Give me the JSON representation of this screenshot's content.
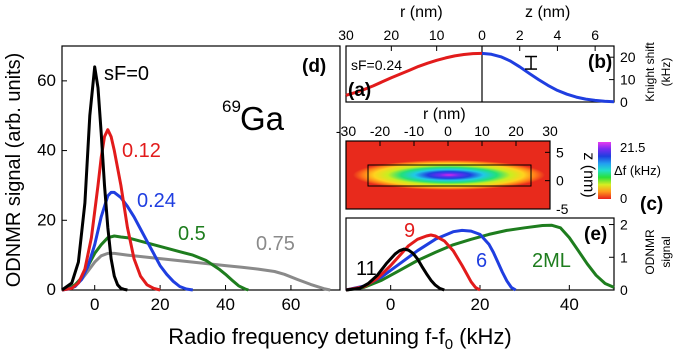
{
  "colors": {
    "black": "#000000",
    "red": "#e21b1b",
    "blue": "#1f3ee0",
    "green": "#1e7d1e",
    "gray": "#8a8a8a"
  },
  "shared": {
    "xlabel_main": "Radio frequency detuning f-f",
    "xlabel_sub": "0",
    "xlabel_unit": " (kHz)"
  },
  "chart_data": [
    {
      "id": "d",
      "type": "line",
      "panel_label": "(d)",
      "ylabel": "ODNMR signal (arb. units)",
      "xlim": [
        -10,
        75
      ],
      "ylim": [
        0,
        70
      ],
      "xticks": [
        0,
        20,
        40,
        60
      ],
      "yticks": [
        0,
        20,
        40,
        60
      ],
      "isotope_mass": "69",
      "isotope_symbol": "Ga",
      "series": [
        {
          "label": "sF=0",
          "color": "#000000",
          "x": [
            -10,
            -7,
            -5,
            -3,
            -1.5,
            0,
            1,
            2,
            3,
            4,
            5,
            6,
            7,
            8,
            9,
            10
          ],
          "y": [
            0,
            2,
            8,
            25,
            50,
            64,
            58,
            45,
            30,
            18,
            9,
            4,
            1.5,
            0.5,
            0.2,
            0
          ]
        },
        {
          "label": "0.12",
          "color": "#e21b1b",
          "x": [
            -10,
            -7,
            -5,
            -3,
            -1,
            1,
            2,
            3,
            4,
            5,
            6,
            8,
            10,
            12,
            14,
            16,
            18,
            20
          ],
          "y": [
            0,
            0.5,
            2,
            6,
            15,
            30,
            38,
            44,
            46,
            44,
            40,
            30,
            18,
            9,
            4,
            1.5,
            0.5,
            0
          ]
        },
        {
          "label": "0.24",
          "color": "#1f3ee0",
          "x": [
            -10,
            -8,
            -6,
            -4,
            -2,
            0,
            2,
            4,
            5,
            6,
            8,
            10,
            12,
            14,
            16,
            18,
            20,
            22,
            24,
            26,
            28,
            30
          ],
          "y": [
            0,
            0.3,
            1,
            3,
            7,
            13,
            21,
            27,
            28,
            28,
            26.5,
            24,
            21,
            17.5,
            14,
            10.5,
            7,
            4.5,
            2.5,
            1,
            0.3,
            0
          ]
        },
        {
          "label": "0.5",
          "color": "#1e7d1e",
          "x": [
            -10,
            -8,
            -6,
            -4,
            -2,
            0,
            2,
            4,
            6,
            8,
            10,
            14,
            18,
            22,
            26,
            30,
            34,
            38,
            40,
            42,
            44,
            46,
            47
          ],
          "y": [
            0,
            0.5,
            1.5,
            3.5,
            7,
            10.5,
            13,
            15,
            15.5,
            15.2,
            15,
            14,
            13,
            12,
            11,
            10,
            8.5,
            6,
            4.5,
            2.8,
            1.2,
            0.3,
            0
          ]
        },
        {
          "label": "0.75",
          "color": "#8a8a8a",
          "x": [
            -10,
            -8,
            -6,
            -4,
            -2,
            0,
            2,
            4,
            6,
            10,
            15,
            20,
            25,
            30,
            35,
            40,
            45,
            50,
            55,
            58,
            62,
            66,
            70,
            72
          ],
          "y": [
            0,
            0.4,
            1.2,
            3,
            5.5,
            8,
            9.8,
            10.5,
            10.5,
            10,
            9.5,
            9,
            8.5,
            8,
            7.5,
            7,
            6.5,
            6,
            5.3,
            4.5,
            3,
            1.6,
            0.4,
            0
          ]
        }
      ]
    },
    {
      "id": "a-b",
      "type": "line",
      "panel_label_a": "(a)",
      "panel_label_b": "(b)",
      "annotation": "sF=0.24",
      "xlabel_left": "r (nm)",
      "xlabel_right": "z (nm)",
      "ylabel_line1": "Knight shift",
      "ylabel_line2": "(kHz)",
      "xlim_left": [
        30,
        0
      ],
      "xlim_right": [
        0,
        7
      ],
      "ylim": [
        0,
        25
      ],
      "xticks_left": [
        30,
        20,
        10,
        0
      ],
      "xticks_right": [
        0,
        2,
        4,
        6
      ],
      "yticks": [
        0,
        10,
        20
      ],
      "errorbar": {
        "z": 2.6,
        "center": 17.5,
        "half_width": 2.8
      },
      "series": [
        {
          "name": "r",
          "color": "#e21b1b",
          "x": [
            30,
            28,
            26,
            24,
            22,
            20,
            18,
            16,
            14,
            12,
            10,
            8,
            6,
            4,
            2,
            0
          ],
          "y": [
            3,
            4.2,
            5.6,
            7.2,
            9,
            10.8,
            12.5,
            14.2,
            15.9,
            17.3,
            18.6,
            19.7,
            20.6,
            21.2,
            21.6,
            21.7
          ]
        },
        {
          "name": "z",
          "color": "#1f3ee0",
          "x": [
            0,
            0.5,
            1,
            1.5,
            2,
            2.5,
            3,
            3.5,
            4,
            4.5,
            5,
            5.5,
            6,
            6.5,
            7
          ],
          "y": [
            21.7,
            21.3,
            20.2,
            18.3,
            15.7,
            12.8,
            10,
            7.4,
            5.2,
            3.5,
            2.2,
            1.3,
            0.7,
            0.3,
            0.1
          ]
        }
      ]
    },
    {
      "id": "c",
      "type": "heatmap",
      "panel_label": "(c)",
      "xlabel": "r (nm)",
      "ylabel": "z (nm)",
      "xlim": [
        -30,
        30
      ],
      "ylim": [
        -5,
        7
      ],
      "xticks": [
        -30,
        -20,
        -10,
        0,
        10,
        20,
        30
      ],
      "yticks": [
        -5,
        0,
        5
      ],
      "colorbar_max": "21.5",
      "colorbar_min": "0",
      "colorbar_label": "Δf (kHz)"
    },
    {
      "id": "e",
      "type": "line",
      "panel_label": "(e)",
      "ylabel_line1": "ODNMR",
      "ylabel_line2": "signal",
      "xlim": [
        -10,
        50
      ],
      "ylim": [
        0,
        2.2
      ],
      "xticks": [
        0,
        20,
        40
      ],
      "yticks": [
        0,
        1,
        2
      ],
      "series": [
        {
          "label": "11",
          "color": "#000000",
          "x": [
            -10,
            -7,
            -5,
            -3,
            -1,
            1,
            2,
            3,
            4,
            5,
            6,
            7,
            8,
            9,
            10,
            11,
            12
          ],
          "y": [
            0,
            0.05,
            0.2,
            0.45,
            0.8,
            1.1,
            1.2,
            1.25,
            1.22,
            1.12,
            0.95,
            0.72,
            0.5,
            0.3,
            0.15,
            0.05,
            0
          ]
        },
        {
          "label": "9",
          "color": "#e21b1b",
          "x": [
            -10,
            -6,
            -3,
            0,
            2,
            4,
            6,
            8,
            9,
            10,
            12,
            14,
            16,
            17,
            18,
            19,
            20
          ],
          "y": [
            0,
            0.1,
            0.35,
            0.75,
            1.05,
            1.35,
            1.55,
            1.65,
            1.68,
            1.65,
            1.5,
            1.2,
            0.75,
            0.5,
            0.25,
            0.08,
            0
          ]
        },
        {
          "label": "6",
          "color": "#1f3ee0",
          "x": [
            -10,
            -6,
            -2,
            2,
            6,
            10,
            14,
            16,
            18,
            20,
            22,
            23,
            24,
            25,
            26,
            27,
            28
          ],
          "y": [
            0,
            0.12,
            0.4,
            0.8,
            1.2,
            1.55,
            1.78,
            1.82,
            1.8,
            1.7,
            1.4,
            1.15,
            0.85,
            0.55,
            0.28,
            0.08,
            0
          ]
        },
        {
          "label": "2ML",
          "color": "#1e7d1e",
          "x": [
            -10,
            -6,
            -2,
            2,
            6,
            10,
            14,
            18,
            22,
            26,
            30,
            34,
            36,
            38,
            40,
            42,
            44,
            46,
            48,
            50
          ],
          "y": [
            0,
            0.08,
            0.3,
            0.6,
            0.9,
            1.15,
            1.38,
            1.55,
            1.7,
            1.82,
            1.9,
            1.97,
            1.98,
            1.9,
            1.6,
            1.2,
            0.8,
            0.45,
            0.2,
            0.08
          ]
        }
      ]
    }
  ]
}
